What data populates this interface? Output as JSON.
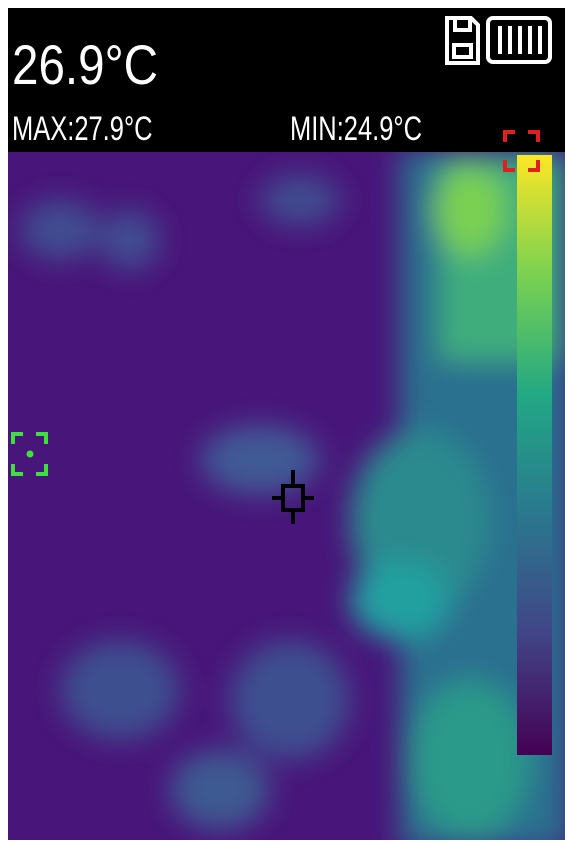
{
  "header": {
    "temperature": "26.9°C",
    "max": "MAX:27.9°C",
    "min": "MIN:24.9°C"
  }
}
